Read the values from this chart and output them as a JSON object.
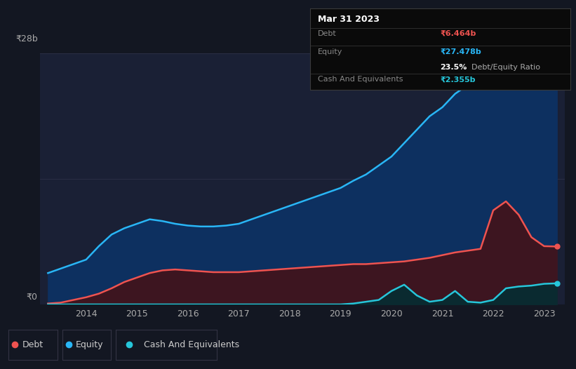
{
  "bg_color": "#131722",
  "plot_bg_color": "#1a2035",
  "grid_color": "#2a2f45",
  "years": [
    2013.25,
    2013.5,
    2013.75,
    2014.0,
    2014.25,
    2014.5,
    2014.75,
    2015.0,
    2015.25,
    2015.5,
    2015.75,
    2016.0,
    2016.25,
    2016.5,
    2016.75,
    2017.0,
    2017.25,
    2017.5,
    2017.75,
    2018.0,
    2018.25,
    2018.5,
    2018.75,
    2019.0,
    2019.25,
    2019.5,
    2019.75,
    2020.0,
    2020.25,
    2020.5,
    2020.75,
    2021.0,
    2021.25,
    2021.5,
    2021.75,
    2022.0,
    2022.25,
    2022.5,
    2022.75,
    2023.0,
    2023.25
  ],
  "equity": [
    3.5,
    4.0,
    4.5,
    5.0,
    6.5,
    7.8,
    8.5,
    9.0,
    9.5,
    9.3,
    9.0,
    8.8,
    8.7,
    8.7,
    8.8,
    9.0,
    9.5,
    10.0,
    10.5,
    11.0,
    11.5,
    12.0,
    12.5,
    13.0,
    13.8,
    14.5,
    15.5,
    16.5,
    18.0,
    19.5,
    21.0,
    22.0,
    23.5,
    24.5,
    25.5,
    26.5,
    27.5,
    27.8,
    27.6,
    27.5,
    27.478
  ],
  "debt": [
    0.1,
    0.2,
    0.5,
    0.8,
    1.2,
    1.8,
    2.5,
    3.0,
    3.5,
    3.8,
    3.9,
    3.8,
    3.7,
    3.6,
    3.6,
    3.6,
    3.7,
    3.8,
    3.9,
    4.0,
    4.1,
    4.2,
    4.3,
    4.4,
    4.5,
    4.5,
    4.6,
    4.7,
    4.8,
    5.0,
    5.2,
    5.5,
    5.8,
    6.0,
    6.2,
    10.5,
    11.5,
    10.0,
    7.5,
    6.5,
    6.464
  ],
  "cash": [
    0.0,
    0.0,
    0.0,
    0.0,
    0.0,
    0.0,
    0.0,
    0.0,
    0.0,
    0.0,
    0.0,
    0.0,
    0.0,
    0.0,
    0.0,
    0.0,
    0.0,
    0.0,
    0.0,
    0.0,
    0.0,
    0.0,
    0.0,
    0.0,
    0.1,
    0.3,
    0.5,
    1.5,
    2.2,
    1.0,
    0.3,
    0.5,
    1.5,
    0.3,
    0.2,
    0.5,
    1.8,
    2.0,
    2.1,
    2.3,
    2.355
  ],
  "equity_color": "#29b6f6",
  "debt_color": "#ef5350",
  "cash_color": "#26c6da",
  "equity_fill_color": "#0d3060",
  "debt_fill_color": "#3d1520",
  "cash_fill_color": "#0a2a30",
  "ytick_label_top": "₹28b",
  "ytick_label_zero": "₹0",
  "xtick_labels": [
    "2014",
    "2015",
    "2016",
    "2017",
    "2018",
    "2019",
    "2020",
    "2021",
    "2022",
    "2023"
  ],
  "xtick_positions": [
    2014,
    2015,
    2016,
    2017,
    2018,
    2019,
    2020,
    2021,
    2022,
    2023
  ],
  "ymax": 28,
  "xmin": 2013.1,
  "xmax": 2023.4,
  "tooltip_title": "Mar 31 2023",
  "tooltip_bg": "#0a0a0a",
  "tooltip_border": "#3a3a3a",
  "debt_label": "₹6.464b",
  "equity_label": "₹27.478b",
  "ratio_bold": "23.5%",
  "ratio_normal": " Debt/Equity Ratio",
  "cash_label": "₹2.355b",
  "legend_labels": [
    "Debt",
    "Equity",
    "Cash And Equivalents"
  ],
  "legend_colors": [
    "#ef5350",
    "#29b6f6",
    "#26c6da"
  ]
}
